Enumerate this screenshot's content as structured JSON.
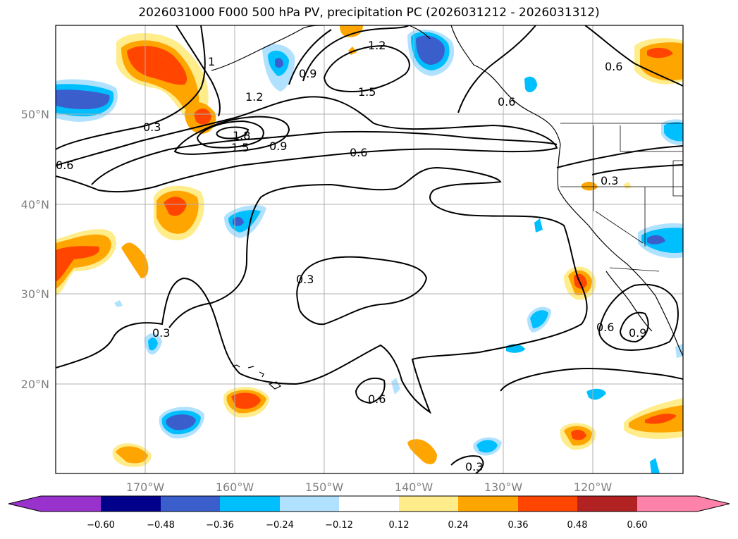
{
  "title": "2026031000 F000 500 hPa PV, precipitation PC (2026031212 - 2026031312)",
  "map": {
    "lon_labels": [
      "170°W",
      "160°W",
      "150°W",
      "140°W",
      "130°W",
      "120°W"
    ],
    "lat_labels": [
      "50°N",
      "40°N",
      "30°N",
      "20°N"
    ],
    "contour_labels": [
      "1",
      "0.3",
      "1.2",
      "1.8",
      "1.5",
      "0.9",
      "0.6",
      "1.2",
      "1.5",
      "0.9",
      "0.6",
      "0.6",
      "0.3",
      "0.3",
      "0.3",
      "0.6",
      "0.6",
      "0.9",
      "0.3",
      "0.6"
    ],
    "colors": {
      "grid": "#b0b0b0",
      "coast": "#000000"
    }
  },
  "colorbar": {
    "ticks": [
      "−0.60",
      "−0.48",
      "−0.36",
      "−0.24",
      "−0.12",
      "0.12",
      "0.24",
      "0.36",
      "0.48",
      "0.60"
    ],
    "colors": [
      "#9932cc",
      "#00008b",
      "#3a5fcd",
      "#00bfff",
      "#b0e2ff",
      "#ffffff",
      "#ffec8b",
      "#ffa500",
      "#ff4500",
      "#b22222",
      "#ff82ab"
    ]
  }
}
